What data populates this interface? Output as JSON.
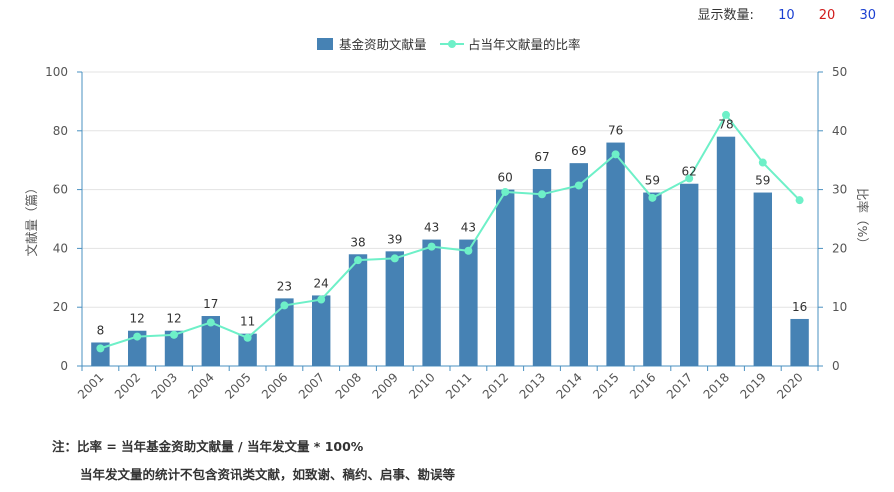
{
  "page_size": {
    "label": "显示数量:",
    "options": [
      {
        "label": "10",
        "color": "#1a3fd1"
      },
      {
        "label": "20",
        "color": "#d11a1a"
      },
      {
        "label": "30",
        "color": "#1a3fd1"
      }
    ]
  },
  "chart_data": {
    "type": "bar+line",
    "categories": [
      "2001",
      "2002",
      "2003",
      "2004",
      "2005",
      "2006",
      "2007",
      "2008",
      "2009",
      "2010",
      "2011",
      "2012",
      "2013",
      "2014",
      "2015",
      "2016",
      "2017",
      "2018",
      "2019",
      "2020"
    ],
    "series": [
      {
        "name": "基金资助文献量",
        "type": "bar",
        "axis": "left",
        "color": "#4682b4",
        "values": [
          8,
          12,
          12,
          17,
          11,
          23,
          24,
          38,
          39,
          43,
          43,
          60,
          67,
          69,
          76,
          59,
          62,
          78,
          59,
          16
        ]
      },
      {
        "name": "占当年文献量的比率",
        "type": "line",
        "axis": "right",
        "color": "#6ef0c8",
        "values": [
          3.0,
          5.0,
          5.3,
          7.4,
          4.8,
          10.3,
          11.3,
          18.0,
          18.3,
          20.3,
          19.6,
          29.6,
          29.2,
          30.7,
          36.0,
          28.6,
          31.9,
          42.7,
          34.6,
          28.2
        ]
      }
    ],
    "ylabel_left": "文献量（篇）",
    "ylabel_right": "比率（%）",
    "ylim_left": [
      0,
      100
    ],
    "yticks_left": [
      0,
      20,
      40,
      60,
      80,
      100
    ],
    "ylim_right": [
      0,
      50
    ],
    "yticks_right": [
      0,
      10,
      20,
      30,
      40,
      50
    ],
    "grid": true,
    "legend_position": "top-center"
  },
  "notes": {
    "line1": "注：比率 = 当年基金资助文献量 / 当年发文量 * 100%",
    "line2": "当年发文量的统计不包含资讯类文献，如致谢、稿约、启事、勘误等"
  }
}
